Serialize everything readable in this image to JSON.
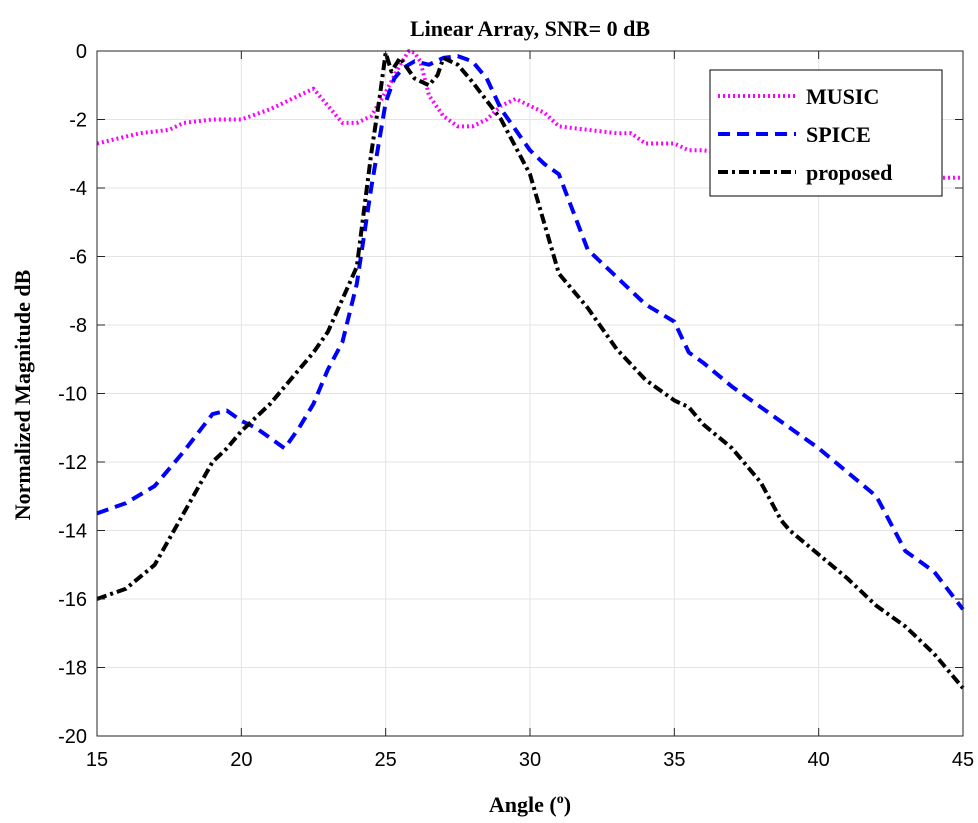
{
  "chart_data": {
    "type": "line",
    "title": "Linear Array, SNR= 0 dB",
    "xlabel": "Angle (",
    "xlabel_sup": "o",
    "xlabel_close": ")",
    "ylabel": "Normalized Magnitude dB",
    "xlim": [
      15,
      45
    ],
    "ylim": [
      -20,
      0
    ],
    "xticks": [
      15,
      20,
      25,
      30,
      35,
      40,
      45
    ],
    "yticks": [
      0,
      -2,
      -4,
      -6,
      -8,
      -10,
      -12,
      -14,
      -16,
      -18,
      -20
    ],
    "grid": true,
    "legend_position": "top-right",
    "series": [
      {
        "name": "MUSIC",
        "color": "#ff00ff",
        "style": "dotted",
        "x": [
          15,
          16,
          16.5,
          17.5,
          18,
          19,
          20,
          21,
          21.5,
          22,
          22.5,
          23,
          23.5,
          24,
          24.5,
          25,
          25.5,
          25.8,
          26,
          26.2,
          26.5,
          27,
          27.5,
          28,
          28.5,
          29,
          29.5,
          30,
          30.5,
          31,
          32,
          33,
          33.5,
          34,
          35,
          35.5,
          36,
          37,
          38,
          39,
          40,
          41,
          42,
          43,
          44,
          45
        ],
        "values": [
          -2.7,
          -2.5,
          -2.4,
          -2.3,
          -2.1,
          -2.0,
          -2.0,
          -1.7,
          -1.5,
          -1.3,
          -1.1,
          -1.6,
          -2.1,
          -2.1,
          -1.9,
          -1.2,
          -0.4,
          0,
          -0.05,
          -0.3,
          -1.3,
          -1.9,
          -2.2,
          -2.2,
          -2.0,
          -1.6,
          -1.4,
          -1.6,
          -1.8,
          -2.2,
          -2.3,
          -2.4,
          -2.4,
          -2.7,
          -2.7,
          -2.9,
          -2.9,
          -3.0,
          -3.1,
          -3.2,
          -3.3,
          -3.4,
          -3.5,
          -3.6,
          -3.7,
          -3.7
        ]
      },
      {
        "name": "SPICE",
        "color": "#0000ff",
        "style": "dashed",
        "x": [
          15,
          16,
          17,
          18,
          19,
          19.5,
          20,
          20.5,
          21,
          21.5,
          22,
          22.5,
          23,
          23.5,
          24,
          24.5,
          25,
          25.3,
          25.6,
          26,
          26.5,
          27,
          27.5,
          28,
          28.5,
          29,
          29.5,
          30,
          30.5,
          31,
          32,
          33,
          34,
          35,
          35.5,
          36,
          37,
          38,
          39,
          40,
          41,
          42,
          43,
          44,
          45
        ],
        "values": [
          -13.5,
          -13.2,
          -12.7,
          -11.7,
          -10.6,
          -10.5,
          -10.8,
          -11.0,
          -11.3,
          -11.6,
          -11.0,
          -10.3,
          -9.3,
          -8.5,
          -6.8,
          -4.0,
          -1.5,
          -0.8,
          -0.5,
          -0.3,
          -0.4,
          -0.2,
          -0.15,
          -0.3,
          -0.8,
          -1.7,
          -2.3,
          -2.9,
          -3.3,
          -3.6,
          -5.8,
          -6.6,
          -7.4,
          -7.9,
          -8.8,
          -9.1,
          -9.8,
          -10.4,
          -11.0,
          -11.6,
          -12.3,
          -13.0,
          -14.6,
          -15.2,
          -16.3
        ]
      },
      {
        "name": "proposed",
        "color": "#000000",
        "style": "dashdot",
        "x": [
          15,
          16,
          17,
          18,
          19,
          19.5,
          20,
          21,
          22,
          22.5,
          23,
          24,
          24.5,
          24.8,
          25,
          25.2,
          25.5,
          26,
          26.5,
          26.8,
          27,
          27.5,
          28,
          29,
          30,
          31,
          32,
          33,
          34,
          35,
          35.5,
          36,
          37,
          38,
          38.7,
          39,
          40,
          41,
          42,
          43,
          43.5,
          44,
          45
        ],
        "values": [
          -16.0,
          -15.7,
          -15.0,
          -13.5,
          -12.0,
          -11.6,
          -11.1,
          -10.3,
          -9.3,
          -8.8,
          -8.2,
          -6.3,
          -3.0,
          -1.3,
          -0.05,
          -0.6,
          -0.2,
          -0.8,
          -1.0,
          -0.7,
          -0.2,
          -0.4,
          -0.9,
          -2.0,
          -3.6,
          -6.5,
          -7.5,
          -8.7,
          -9.6,
          -10.2,
          -10.4,
          -10.9,
          -11.6,
          -12.6,
          -13.7,
          -14.0,
          -14.7,
          -15.4,
          -16.2,
          -16.8,
          -17.2,
          -17.6,
          -18.6
        ]
      }
    ]
  }
}
